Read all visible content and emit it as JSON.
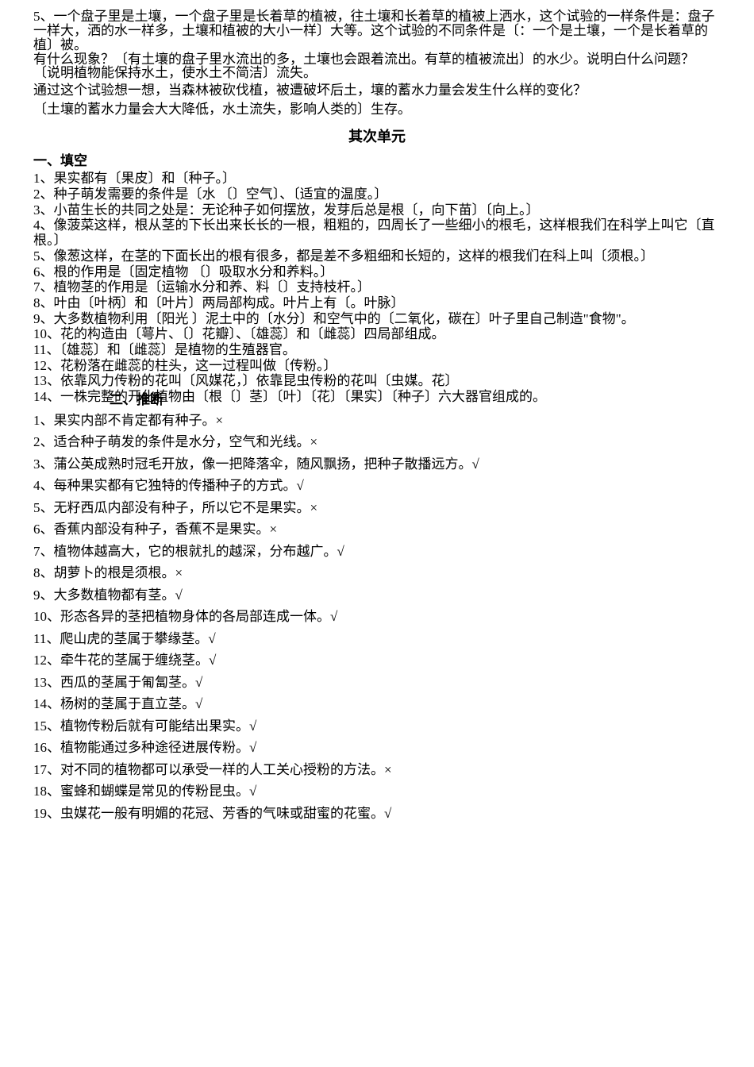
{
  "intro": {
    "lines": [
      "5、一个盘子里是土壤，一个盘子里是长着草的植被，往土壤和长着草的植被上洒水，这个试验的一样条件是：盘子一样大，洒的水一样多，土壤和植被的大小一样〕大等。这个试验的不同条件是〔：一个是土壤，一个是长着草的植〕被。",
      "有什么现象？〔有土壤的盘子里水流出的多，土壤也会跟着流出。有草的植被流出〕的水少。说明白什么问题？〔说明植物能保持水土，使水土不简洁〕流失。",
      "通过这个试验想一想，当森林被砍伐植，被遭破坏后土，壤的蓄水力量会发生什么样的变化？",
      "〔土壤的蓄水力量会大大降低，水土流失，影响人类的〕生存。"
    ]
  },
  "unitTitle": "其次单元",
  "section1": {
    "header": "一、填空",
    "items": [
      "1、果实都有〔果皮〕和〔种子。〕",
      "2、种子萌发需要的条件是〔水 〔〕空气〕、〔适宜的温度。〕",
      "3、小苗生长的共同之处是：无论种子如何摆放，发芽后总是根〔，向下苗〕〔向上。〕",
      "4、像菠菜这样，根从茎的下长出来长长的一根，粗粗的，四周长了一些细小的根毛，这样根我们在科学上叫它〔直根。〕",
      "5、像葱这样，在茎的下面长出的根有很多，都是差不多粗细和长短的，这样的根我们在科上叫〔须根。〕",
      "6、根的作用是〔固定植物 〔〕吸取水分和养料。〕",
      "7、植物茎的作用是〔运输水分和养、料〔〕支持枝杆。〕",
      "8、叶由〔叶柄〕和〔叶片〕两局部构成。叶片上有〔。叶脉〕",
      "9、大多数植物利用〔阳光 〕泥土中的〔水分〕和空气中的〔二氧化，碳在〕叶子里自己制造\"食物\"。",
      "10、花的构造由〔萼片、〔〕花瓣〕、〔雄蕊〕和〔雌蕊〕四局部组成。",
      "11、〔雄蕊〕和〔雌蕊〕是植物的生殖器官。",
      "12、花粉落在雌蕊的柱头，这一过程叫做〔传粉。〕",
      "13、依靠风力传粉的花叫〔风媒花，〕依靠昆虫传粉的花叫〔虫媒。花〕",
      "14、一株完整的开化植物由〔根〔〕茎〕〔叶〕〔花〕〔果实〕〔种子〕六大器官组成的。"
    ]
  },
  "section2": {
    "header": "二、推断",
    "items": [
      {
        "text": "1、果实内部不肯定都有种子。",
        "mark": "×"
      },
      {
        "text": "2、适合种子萌发的条件是水分，空气和光线。",
        "mark": "×"
      },
      {
        "text": "3、蒲公英成熟时冠毛开放，像一把降落伞，随风飘扬，把种子散播远方。",
        "mark": "√"
      },
      {
        "text": "4、每种果实都有它独特的传播种子的方式。",
        "mark": "√"
      },
      {
        "text": "5、无籽西瓜内部没有种子，所以它不是果实。",
        "mark": "×"
      },
      {
        "text": "6、香蕉内部没有种子，香蕉不是果实。",
        "mark": "×"
      },
      {
        "text": "7、植物体越高大，它的根就扎的越深，分布越广。",
        "mark": "√"
      },
      {
        "text": "8、胡萝卜的根是须根。",
        "mark": "×"
      },
      {
        "text": "9、大多数植物都有茎。",
        "mark": "√"
      },
      {
        "text": "10、形态各异的茎把植物身体的各局部连成一体。",
        "mark": "√"
      },
      {
        "text": "11、爬山虎的茎属于攀缘茎。",
        "mark": "√"
      },
      {
        "text": "12、牵牛花的茎属于缠绕茎。",
        "mark": "√"
      },
      {
        "text": "13、西瓜的茎属于匍匐茎。",
        "mark": "√"
      },
      {
        "text": "14、杨树的茎属于直立茎。",
        "mark": "√"
      },
      {
        "text": "15、植物传粉后就有可能结出果实。",
        "mark": "√"
      },
      {
        "text": "16、植物能通过多种途径进展传粉。",
        "mark": "√"
      },
      {
        "text": "17、对不同的植物都可以承受一样的人工关心授粉的方法。",
        "mark": "×"
      },
      {
        "text": "18、蜜蜂和蝴蝶是常见的传粉昆虫。",
        "mark": "√"
      },
      {
        "text": "19、虫媒花一般有明媚的花冠、芳香的气味或甜蜜的花蜜。",
        "mark": "√"
      }
    ]
  }
}
